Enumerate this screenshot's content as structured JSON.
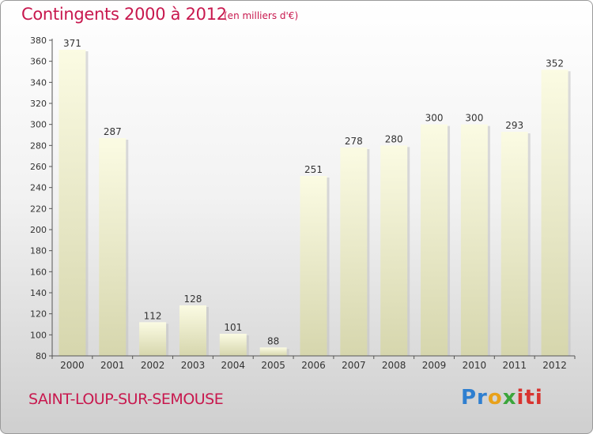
{
  "header": {
    "title": "Contingents 2000 à 2012",
    "subtitle": "(en milliers d'€)"
  },
  "footer": {
    "commune": "SAINT-LOUP-SUR-SEMOUSE",
    "logo_text": "Proxiti"
  },
  "colors": {
    "title": "#c8184e",
    "bar_top": "#fbfbe3",
    "bar_bottom": "#d6d6ad"
  },
  "chart_data": {
    "type": "bar",
    "categories": [
      "2000",
      "2001",
      "2002",
      "2003",
      "2004",
      "2005",
      "2006",
      "2007",
      "2008",
      "2009",
      "2010",
      "2011",
      "2012"
    ],
    "values": [
      371,
      287,
      112,
      128,
      101,
      88,
      251,
      278,
      280,
      300,
      300,
      293,
      352
    ],
    "ylim": [
      80,
      380
    ],
    "yticks": [
      80,
      100,
      120,
      140,
      160,
      180,
      200,
      220,
      240,
      260,
      280,
      300,
      320,
      340,
      360,
      380
    ],
    "grid": false
  }
}
